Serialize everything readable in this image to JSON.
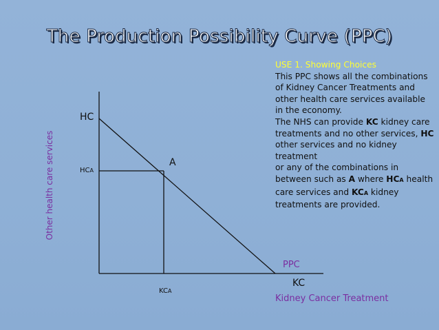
{
  "title": "The Production Possibility Curve (PPC)",
  "diagram": {
    "y_axis_label": "Other health care services",
    "x_axis_label": "Kidney Cancer Treatment",
    "intercept_y_label": "HC",
    "intercept_x_label": "KC",
    "point_label": "A",
    "hc_a_label": "HC",
    "hc_a_sub": "A",
    "kc_a_label": "KC",
    "kc_a_sub": "A",
    "curve_label": "PPC"
  },
  "note": {
    "heading": "USE 1. Showing Choices",
    "p1": "This PPC shows all the combinations of Kidney Cancer Treatments and other health care services available in the economy.",
    "p2_a": "The NHS can provide ",
    "p2_b": "KC",
    "p2_c": " kidney care treatments and no other services, ",
    "p2_d": "HC",
    "p2_e": " other services and no kidney treatment",
    "p3_a": "or any of the combinations in between such as ",
    "p3_b": "A",
    "p3_c": " where ",
    "p3_d": "HC",
    "p3_e": "A",
    "p3_f": " health care services and ",
    "p3_g": "KC",
    "p3_h": "A",
    "p3_i": " kidney treatments are provided."
  }
}
